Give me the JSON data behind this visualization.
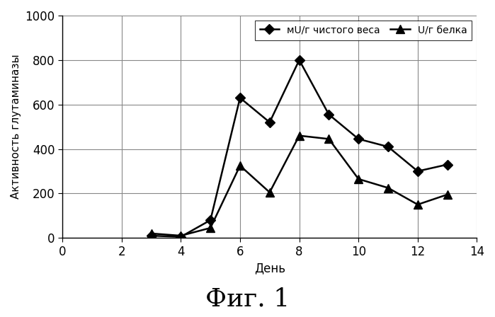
{
  "series1": {
    "label": "мU/г чистого веса",
    "x": [
      3,
      4,
      5,
      6,
      7,
      8,
      9,
      10,
      11,
      12,
      13
    ],
    "y": [
      10,
      5,
      80,
      630,
      520,
      800,
      555,
      445,
      410,
      300,
      330
    ],
    "marker": "D",
    "markersize": 7,
    "color": "#000000",
    "linewidth": 1.8
  },
  "series2": {
    "label": "U/г белка",
    "x": [
      3,
      4,
      5,
      6,
      7,
      8,
      9,
      10,
      11,
      12,
      13
    ],
    "y": [
      20,
      10,
      45,
      325,
      205,
      460,
      445,
      265,
      225,
      150,
      195
    ],
    "marker": "^",
    "markersize": 9,
    "color": "#000000",
    "linewidth": 1.8
  },
  "xlim": [
    0,
    14
  ],
  "ylim": [
    0,
    1000
  ],
  "xticks": [
    0,
    2,
    4,
    6,
    8,
    10,
    12,
    14
  ],
  "yticks": [
    0,
    200,
    400,
    600,
    800,
    1000
  ],
  "xlabel": "День",
  "ylabel": "Активность глутаминазы",
  "caption": "Фиг. 1",
  "grid": true,
  "background_color": "#ffffff",
  "legend_ncol": 2,
  "legend_fontsize": 10,
  "xlabel_fontsize": 12,
  "ylabel_fontsize": 11,
  "tick_fontsize": 12,
  "caption_fontsize": 26
}
